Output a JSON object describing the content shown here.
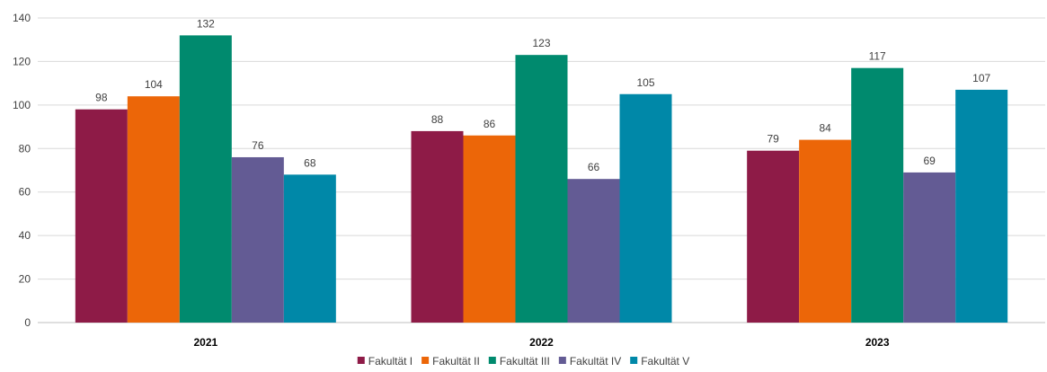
{
  "chart_data": {
    "type": "bar",
    "categories": [
      "2021",
      "2022",
      "2023"
    ],
    "series": [
      {
        "name": "Fakultät I",
        "color": "#8e1b47",
        "values": [
          98,
          88,
          79
        ]
      },
      {
        "name": "Fakultät II",
        "color": "#ec6608",
        "values": [
          104,
          86,
          84
        ]
      },
      {
        "name": "Fakultät III",
        "color": "#008a6e",
        "values": [
          132,
          123,
          117
        ]
      },
      {
        "name": "Fakultät IV",
        "color": "#635b94",
        "values": [
          76,
          66,
          69
        ]
      },
      {
        "name": "Fakultät V",
        "color": "#0088a8",
        "values": [
          68,
          105,
          107
        ]
      }
    ],
    "ylim": [
      0,
      140
    ],
    "yticks": [
      "0",
      "20",
      "40",
      "60",
      "80",
      "100",
      "120",
      "140"
    ],
    "grid": true,
    "legend_position": "bottom-center"
  }
}
